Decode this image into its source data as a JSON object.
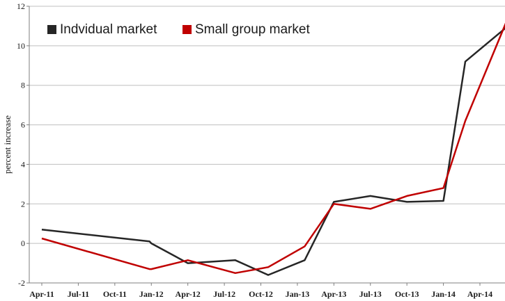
{
  "chart_data": {
    "type": "line",
    "categories": [
      "Apr-11",
      "Jul-11",
      "Oct-11",
      "Jan-12",
      "Apr-12",
      "Jul-12",
      "Oct-12",
      "Jan-13",
      "Apr-13",
      "Jul-13",
      "Oct-13",
      "Jan-14",
      "Apr-14"
    ],
    "series": [
      {
        "name": "Indvidual market",
        "color": "#262626",
        "points": [
          {
            "x": 0,
            "y": 0.7
          },
          {
            "x": 2.95,
            "y": 0.1
          },
          {
            "x": 3.0,
            "y": 0.0
          },
          {
            "x": 4.0,
            "y": -1.0
          },
          {
            "x": 5.3,
            "y": -0.85
          },
          {
            "x": 6.2,
            "y": -1.6
          },
          {
            "x": 7.2,
            "y": -0.85
          },
          {
            "x": 8.0,
            "y": 2.1
          },
          {
            "x": 9.0,
            "y": 2.4
          },
          {
            "x": 10.0,
            "y": 2.1
          },
          {
            "x": 11.0,
            "y": 2.15
          },
          {
            "x": 11.6,
            "y": 9.2
          },
          {
            "x": 12.9,
            "y": 11.2
          }
        ]
      },
      {
        "name": "Small group market",
        "color": "#c00000",
        "points": [
          {
            "x": 0,
            "y": 0.25
          },
          {
            "x": 2.95,
            "y": -1.3
          },
          {
            "x": 3.0,
            "y": -1.3
          },
          {
            "x": 4.0,
            "y": -0.85
          },
          {
            "x": 5.3,
            "y": -1.5
          },
          {
            "x": 6.2,
            "y": -1.2
          },
          {
            "x": 7.2,
            "y": -0.15
          },
          {
            "x": 8.0,
            "y": 2.0
          },
          {
            "x": 9.0,
            "y": 1.75
          },
          {
            "x": 10.0,
            "y": 2.4
          },
          {
            "x": 11.0,
            "y": 2.8
          },
          {
            "x": 11.6,
            "y": 6.2
          },
          {
            "x": 12.9,
            "y": 12.0
          }
        ]
      }
    ],
    "title": "",
    "xlabel": "",
    "ylabel": "percent  increase",
    "ylim": [
      -2,
      12
    ],
    "yticks": [
      -2,
      0,
      2,
      4,
      6,
      8,
      10,
      12
    ],
    "grid": true,
    "legend": "top-left"
  }
}
